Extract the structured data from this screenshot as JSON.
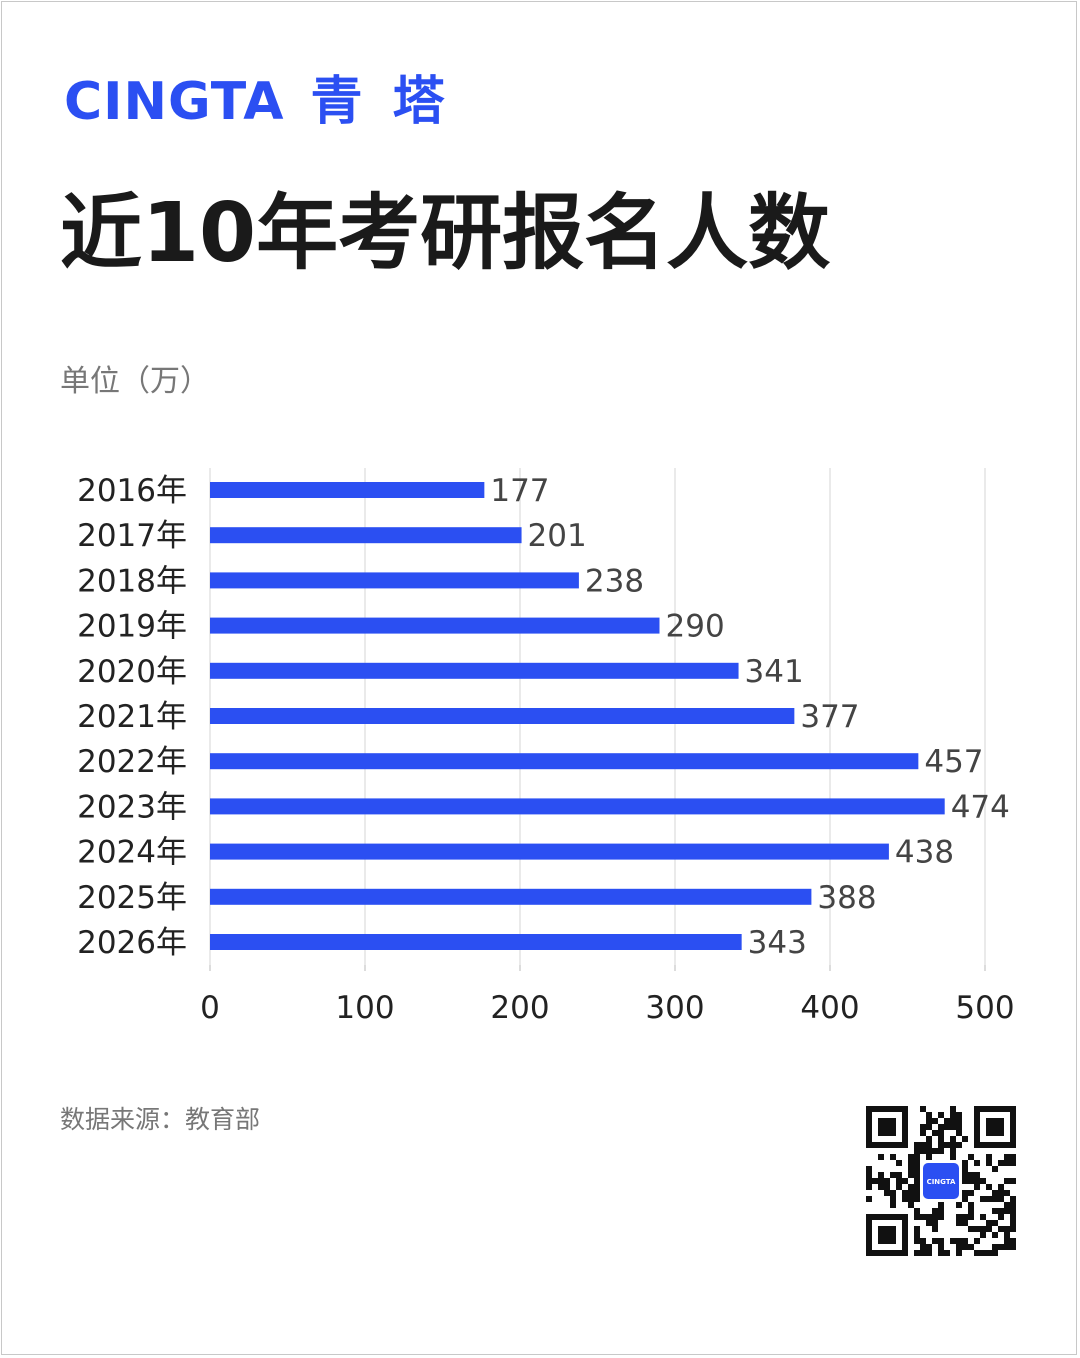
{
  "brand": {
    "latin": "CINGTA",
    "chinese": "青 塔",
    "color": "#2b4ff2"
  },
  "title": "近10年考研报名人数",
  "unit_label": "单位（万）",
  "source": "数据来源：教育部",
  "qr_badge": "CINGTA",
  "chart_data": {
    "type": "bar",
    "orientation": "horizontal",
    "categories": [
      "2016年",
      "2017年",
      "2018年",
      "2019年",
      "2020年",
      "2021年",
      "2022年",
      "2023年",
      "2024年",
      "2025年",
      "2026年"
    ],
    "values": [
      177,
      201,
      238,
      290,
      341,
      377,
      457,
      474,
      438,
      388,
      343
    ],
    "xlim": [
      0,
      500
    ],
    "xticks": [
      0,
      100,
      200,
      300,
      400,
      500
    ],
    "grid": true,
    "bar_color": "#2b4ff2",
    "title": "近10年考研报名人数",
    "unit": "单位（万）"
  }
}
